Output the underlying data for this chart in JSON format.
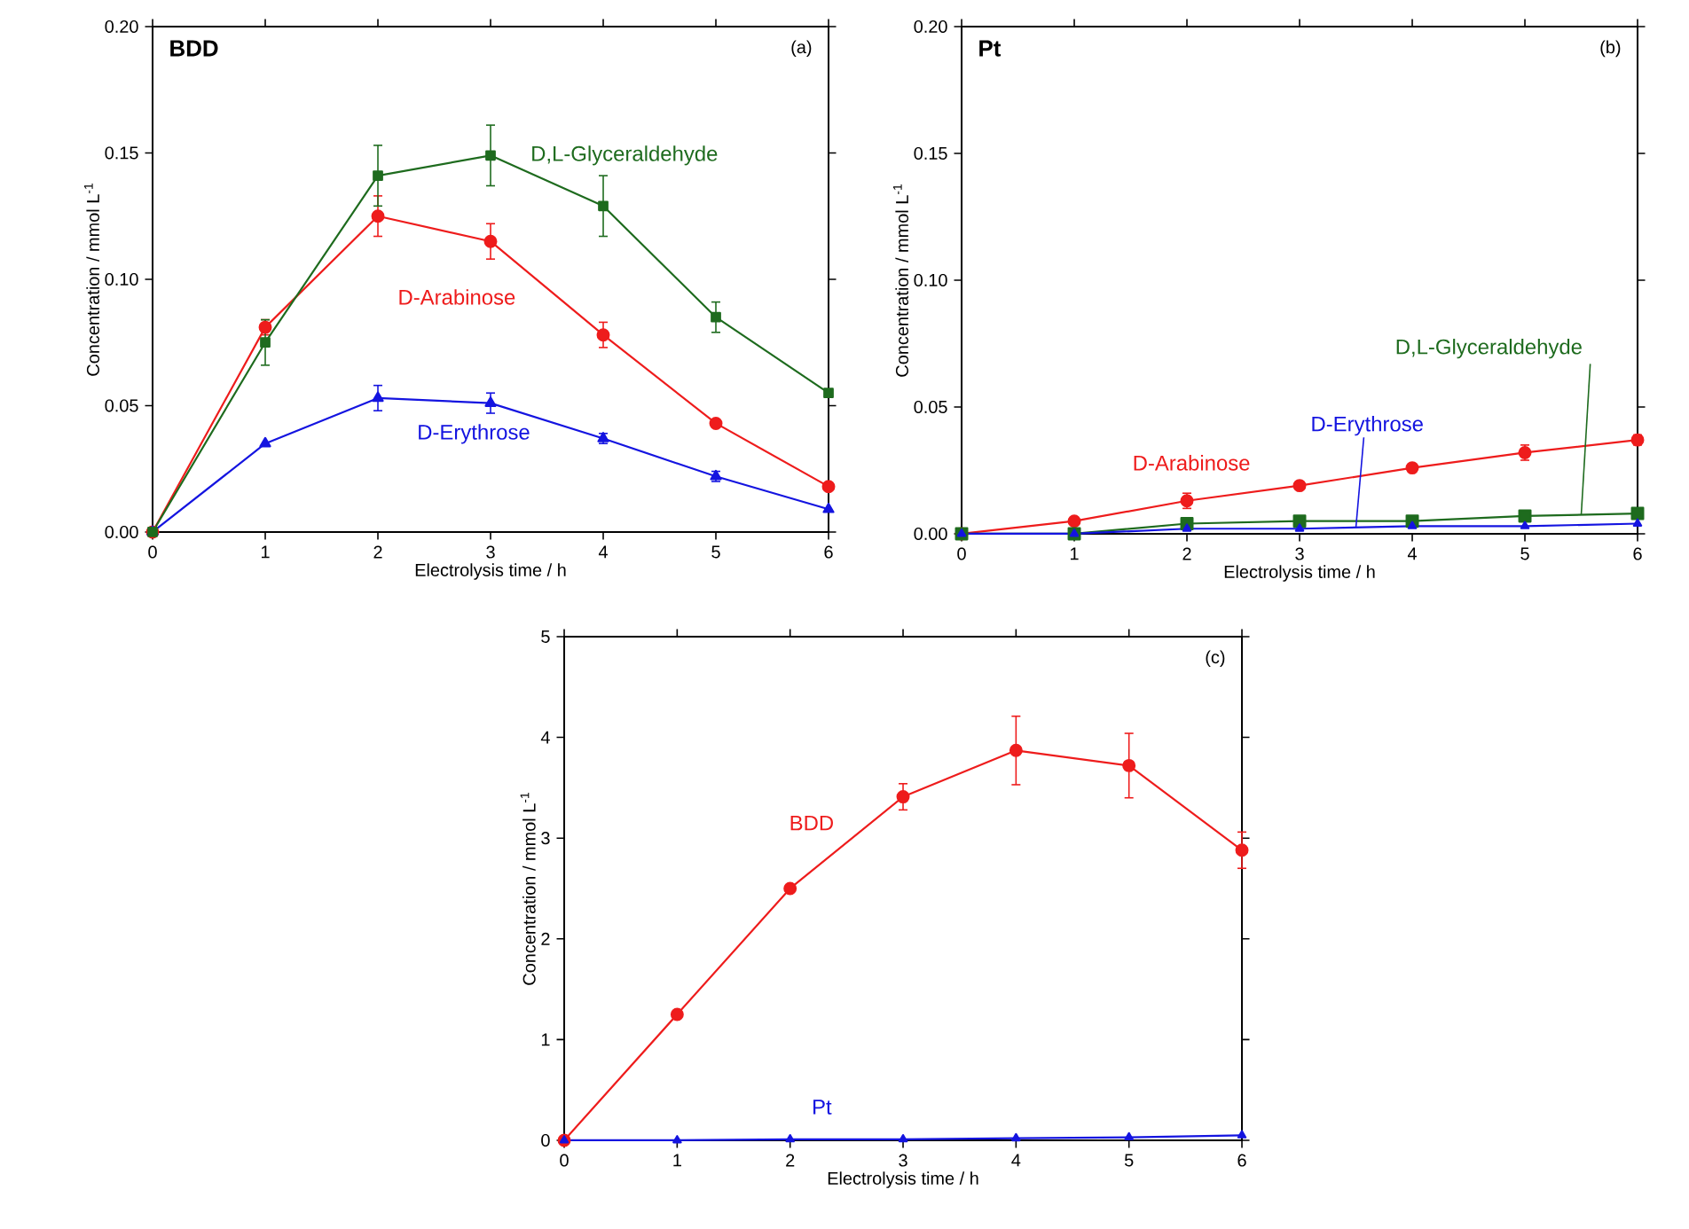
{
  "chart_data": [
    {
      "type": "line",
      "xlabel": "Electrolysis time / h",
      "ylabel": "Concentration / mmol L$^{-1}$",
      "x": [
        0,
        1,
        2,
        3,
        4,
        5,
        6
      ],
      "xlim": [
        0,
        6
      ],
      "xticks": [
        0,
        1,
        2,
        3,
        4,
        5,
        6
      ],
      "ylim": [
        0,
        0.2
      ],
      "yticks": [
        {
          "value": 0,
          "label": "0.00"
        },
        {
          "value": 0.05,
          "label": "0.05"
        },
        {
          "value": 0.1,
          "label": "0.10"
        },
        {
          "value": 0.15,
          "label": "0.15"
        },
        {
          "value": 0.2,
          "label": "0.20"
        }
      ],
      "annotations": [
        "BDD",
        "(a)"
      ],
      "legend": false,
      "series": [
        {
          "name": "D-Arabinose",
          "color": "#ee1c1c",
          "marker": "circle",
          "values": [
            0,
            0.081,
            0.125,
            0.115,
            0.078,
            0.043,
            0.018
          ],
          "errors": [
            null,
            0.003,
            0.008,
            0.007,
            0.005,
            null,
            null
          ]
        },
        {
          "name": "D-Erythrose",
          "color": "#1414e0",
          "marker": "triangle",
          "values": [
            0,
            0.035,
            0.053,
            0.051,
            0.037,
            0.022,
            0.009
          ],
          "errors": [
            null,
            null,
            0.005,
            0.004,
            0.002,
            0.002,
            null
          ]
        },
        {
          "name": "D,L-Glyceraldehyde",
          "color": "#1e6b1e",
          "marker": "square",
          "values": [
            0,
            0.075,
            0.141,
            0.149,
            0.129,
            0.085,
            0.055
          ],
          "errors": [
            null,
            0.009,
            0.012,
            0.012,
            0.012,
            0.006,
            null
          ]
        }
      ]
    },
    {
      "type": "line",
      "xlabel": "Electrolysis time / h",
      "ylabel": "Concentration / mmol L$^{-1}$",
      "x": [
        0,
        1,
        2,
        3,
        4,
        5,
        6
      ],
      "xlim": [
        0,
        6
      ],
      "xticks": [
        0,
        1,
        2,
        3,
        4,
        5,
        6
      ],
      "ylim": [
        0,
        0.2
      ],
      "yticks": [
        {
          "value": 0,
          "label": "0.00"
        },
        {
          "value": 0.05,
          "label": "0.05"
        },
        {
          "value": 0.1,
          "label": "0.10"
        },
        {
          "value": 0.15,
          "label": "0.15"
        },
        {
          "value": 0.2,
          "label": "0.20"
        }
      ],
      "annotations": [
        "Pt",
        "(b)"
      ],
      "legend": false,
      "series": [
        {
          "name": "D-Arabinose",
          "color": "#ee1c1c",
          "marker": "circle",
          "values": [
            0,
            0.005,
            0.013,
            0.019,
            0.026,
            0.032,
            0.037
          ],
          "errors": [
            null,
            null,
            0.003,
            null,
            null,
            0.003,
            0.002
          ]
        },
        {
          "name": "D,L-Glyceraldehyde",
          "color": "#1e6b1e",
          "marker": "square",
          "values": [
            0,
            0,
            0.004,
            0.005,
            0.005,
            0.007,
            0.008
          ]
        },
        {
          "name": "D-Erythrose",
          "color": "#1414e0",
          "marker": "triangle",
          "values": [
            0,
            0,
            0.002,
            0.002,
            0.003,
            0.003,
            0.004
          ]
        }
      ]
    },
    {
      "type": "line",
      "xlabel": "Electrolysis time / h",
      "ylabel": "Concentration / mmol L$^{-1}$",
      "x": [
        0,
        1,
        2,
        3,
        4,
        5,
        6
      ],
      "xlim": [
        0,
        6
      ],
      "xticks": [
        0,
        1,
        2,
        3,
        4,
        5,
        6
      ],
      "ylim": [
        0,
        5
      ],
      "yticks": [
        0,
        1,
        2,
        3,
        4,
        5
      ],
      "annotations": [
        "(c)"
      ],
      "legend": false,
      "series": [
        {
          "name": "BDD",
          "color": "#ee1c1c",
          "marker": "circle",
          "values": [
            0,
            1.25,
            2.5,
            3.41,
            3.87,
            3.72,
            2.88
          ],
          "errors": [
            null,
            null,
            null,
            0.13,
            0.34,
            0.32,
            0.18
          ]
        },
        {
          "name": "Pt",
          "color": "#1414e0",
          "marker": "triangle",
          "values": [
            0,
            0,
            0.01,
            0.01,
            0.02,
            0.03,
            0.05
          ]
        }
      ]
    }
  ]
}
